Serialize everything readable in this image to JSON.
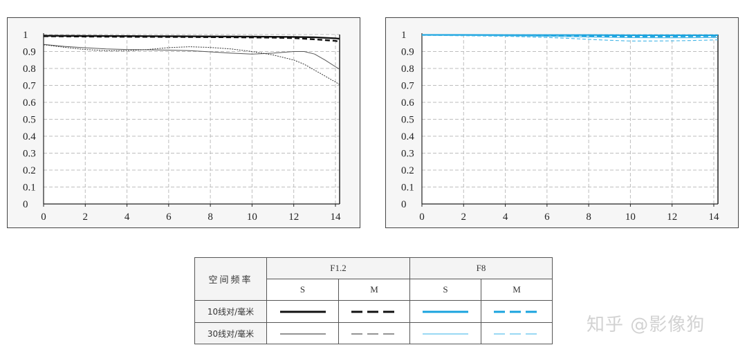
{
  "chart_data": [
    {
      "type": "line",
      "panel": "F1.2",
      "xlim": [
        0,
        14.2
      ],
      "ylim": [
        0,
        1
      ],
      "grid": true,
      "x_ticks": [
        "0",
        "2",
        "4",
        "6",
        "8",
        "10",
        "12",
        "14"
      ],
      "y_ticks": [
        "0",
        "0.1",
        "0.2",
        "0.3",
        "0.4",
        "0.5",
        "0.6",
        "0.7",
        "0.8",
        "0.9",
        "1"
      ],
      "series": [
        {
          "key": "s10",
          "color": "#111111",
          "width": 2.4,
          "dash": "",
          "x": [
            0,
            2,
            4,
            6,
            8,
            10,
            11,
            12,
            13,
            14,
            14.2
          ],
          "y": [
            0.993,
            0.992,
            0.991,
            0.99,
            0.989,
            0.988,
            0.987,
            0.986,
            0.984,
            0.978,
            0.975
          ]
        },
        {
          "key": "m10",
          "color": "#111111",
          "width": 2.4,
          "dash": "7 4",
          "x": [
            0,
            2,
            4,
            6,
            8,
            10,
            11,
            12,
            13,
            14,
            14.2
          ],
          "y": [
            0.99,
            0.988,
            0.987,
            0.986,
            0.985,
            0.983,
            0.982,
            0.979,
            0.972,
            0.963,
            0.958
          ]
        },
        {
          "key": "s30",
          "color": "#555555",
          "width": 1.0,
          "dash": "",
          "x": [
            0,
            1,
            2,
            3,
            4,
            5,
            6,
            7,
            8,
            9,
            10,
            11,
            12,
            12.5,
            13,
            13.5,
            14,
            14.2
          ],
          "y": [
            0.942,
            0.93,
            0.922,
            0.915,
            0.912,
            0.91,
            0.908,
            0.905,
            0.898,
            0.89,
            0.885,
            0.89,
            0.9,
            0.9,
            0.885,
            0.85,
            0.81,
            0.795
          ]
        },
        {
          "key": "m30",
          "color": "#333333",
          "width": 1.0,
          "dash": "2 1.5",
          "x": [
            0,
            1,
            2,
            3,
            4,
            5,
            6,
            7,
            8,
            9,
            10,
            11,
            12,
            12.5,
            13,
            13.5,
            14,
            14.2
          ],
          "y": [
            0.94,
            0.925,
            0.912,
            0.905,
            0.905,
            0.912,
            0.923,
            0.928,
            0.924,
            0.915,
            0.9,
            0.88,
            0.85,
            0.825,
            0.79,
            0.755,
            0.72,
            0.705
          ]
        }
      ]
    },
    {
      "type": "line",
      "panel": "F8",
      "xlim": [
        0,
        14.2
      ],
      "ylim": [
        0,
        1
      ],
      "grid": true,
      "x_ticks": [
        "0",
        "2",
        "4",
        "6",
        "8",
        "10",
        "12",
        "14"
      ],
      "y_ticks": [
        "0",
        "0.1",
        "0.2",
        "0.3",
        "0.4",
        "0.5",
        "0.6",
        "0.7",
        "0.8",
        "0.9",
        "1"
      ],
      "series": [
        {
          "key": "s10",
          "color": "#1aa3de",
          "width": 2.2,
          "dash": "",
          "x": [
            0,
            2,
            4,
            6,
            8,
            10,
            12,
            14,
            14.2
          ],
          "y": [
            0.998,
            0.998,
            0.997,
            0.997,
            0.997,
            0.996,
            0.996,
            0.996,
            0.996
          ]
        },
        {
          "key": "m10",
          "color": "#1aa3de",
          "width": 2.0,
          "dash": "7 4",
          "x": [
            0,
            2,
            4,
            6,
            8,
            10,
            12,
            14,
            14.2
          ],
          "y": [
            0.998,
            0.997,
            0.995,
            0.993,
            0.99,
            0.988,
            0.988,
            0.99,
            0.991
          ]
        },
        {
          "key": "s30",
          "color": "#40b4e6",
          "width": 1.1,
          "dash": "",
          "x": [
            0,
            2,
            4,
            6,
            8,
            10,
            12,
            14,
            14.2
          ],
          "y": [
            0.996,
            0.995,
            0.993,
            0.99,
            0.986,
            0.982,
            0.981,
            0.982,
            0.983
          ]
        },
        {
          "key": "m30",
          "color": "#40b4e6",
          "width": 1.1,
          "dash": "5 3",
          "x": [
            0,
            2,
            4,
            6,
            7,
            8,
            9,
            10,
            11,
            12,
            13,
            14,
            14.2
          ],
          "y": [
            0.995,
            0.993,
            0.99,
            0.983,
            0.978,
            0.972,
            0.966,
            0.962,
            0.962,
            0.963,
            0.965,
            0.968,
            0.969
          ]
        }
      ]
    }
  ],
  "legend": {
    "corner_label": "空间频率",
    "apertures": [
      "F1.2",
      "F8"
    ],
    "columns": [
      "S",
      "M",
      "S",
      "M"
    ],
    "rows": [
      "10线对/毫米",
      "30线对/毫米"
    ]
  },
  "watermark": "知乎 @影像狗"
}
